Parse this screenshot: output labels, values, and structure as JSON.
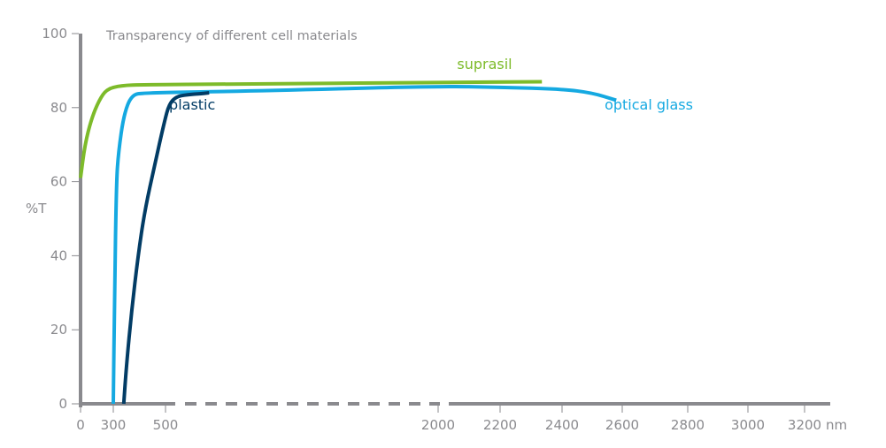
{
  "chart_data": {
    "type": "line",
    "title": "Transparency of different cell materials",
    "xlabel": "nm",
    "ylabel": "%T",
    "ylim": [
      0,
      100
    ],
    "y_ticks": [
      0,
      20,
      40,
      60,
      80,
      100
    ],
    "x_ticks": [
      0,
      300,
      500,
      2000,
      2200,
      2400,
      2600,
      2800,
      3000,
      3200
    ],
    "x_axis_break": [
      500,
      2000
    ],
    "grid": false,
    "series": [
      {
        "name": "suprasil",
        "color": "#7dbb2a",
        "points": [
          [
            0,
            61
          ],
          [
            40,
            70
          ],
          [
            100,
            77
          ],
          [
            170,
            82
          ],
          [
            240,
            85
          ],
          [
            330,
            86
          ],
          [
            420,
            86.2
          ],
          [
            1000,
            86.4
          ],
          [
            2000,
            86.8
          ],
          [
            2335,
            87
          ]
        ]
      },
      {
        "name": "optical glass",
        "color": "#15a9e1",
        "points": [
          [
            300,
            0
          ],
          [
            305,
            30
          ],
          [
            312,
            60
          ],
          [
            320,
            68
          ],
          [
            340,
            78
          ],
          [
            370,
            83.5
          ],
          [
            420,
            84
          ],
          [
            1000,
            84.5
          ],
          [
            2000,
            85.8
          ],
          [
            2200,
            85.5
          ],
          [
            2400,
            85
          ],
          [
            2500,
            84
          ],
          [
            2580,
            82
          ]
        ]
      },
      {
        "name": "plastic",
        "color": "#023c65",
        "points": [
          [
            340,
            0
          ],
          [
            350,
            10
          ],
          [
            370,
            25
          ],
          [
            395,
            40
          ],
          [
            420,
            52
          ],
          [
            460,
            65
          ],
          [
            495,
            76
          ],
          [
            520,
            81
          ],
          [
            560,
            83
          ],
          [
            620,
            83.5
          ],
          [
            700,
            83.8
          ],
          [
            740,
            84
          ]
        ]
      }
    ]
  }
}
